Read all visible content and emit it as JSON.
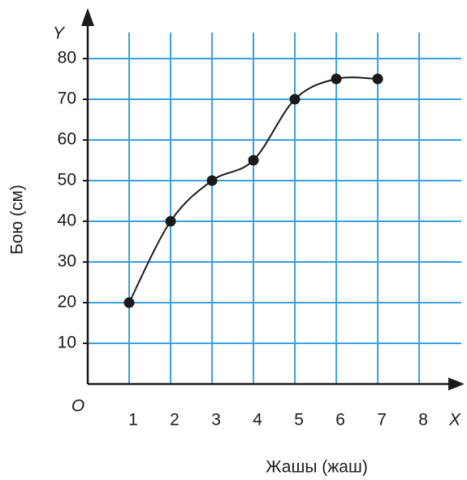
{
  "chart_data": {
    "type": "line",
    "x": [
      1,
      2,
      3,
      4,
      5,
      6,
      7
    ],
    "values": [
      20,
      40,
      50,
      55,
      70,
      75,
      75
    ],
    "color": "#1a1a1a",
    "xlim": [
      0,
      8.9
    ],
    "ylim": [
      0,
      90
    ],
    "xticks": [
      1,
      2,
      3,
      4,
      5,
      6,
      7,
      8
    ],
    "yticks": [
      10,
      20,
      30,
      40,
      50,
      60,
      70,
      80
    ],
    "grid": true,
    "grid_color": "#3aa0de",
    "xlabel": "Жашы  (жаш)",
    "ylabel": "Бою  (см)",
    "x_axis_symbol": "X",
    "y_axis_symbol": "Y",
    "origin_label": "O"
  }
}
